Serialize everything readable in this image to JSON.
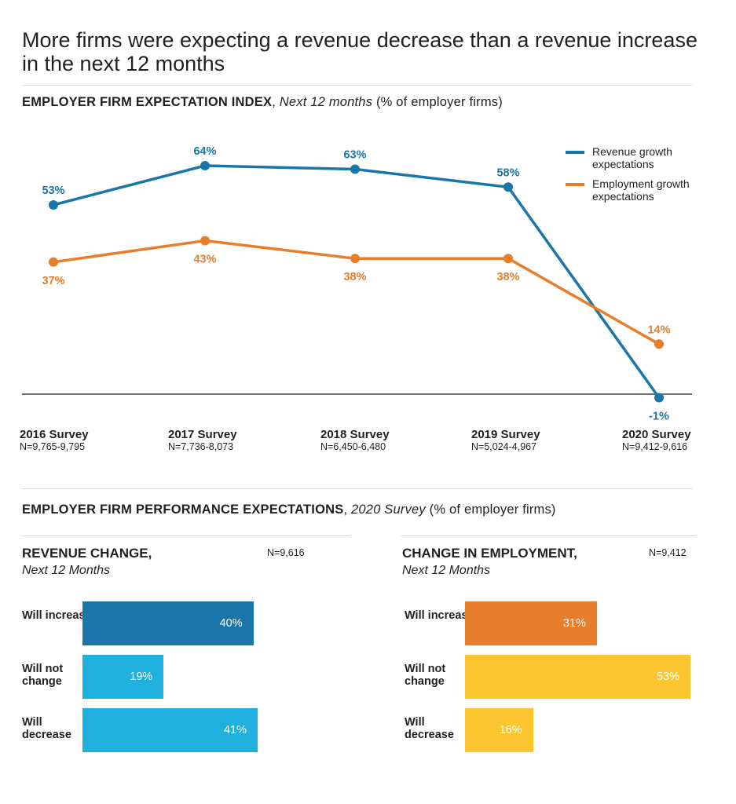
{
  "title": "More firms were expecting a revenue decrease than a revenue increase in the next 12 months",
  "line_section": {
    "heading_bold": "EMPLOYER FIRM EXPECTATION INDEX",
    "heading_italic": "Next 12 months",
    "heading_plain": "(% of employer firms)"
  },
  "surveys": [
    {
      "name": "2016 Survey",
      "n": "N=9,765-9,795"
    },
    {
      "name": "2017 Survey",
      "n": "N=7,736-8,073"
    },
    {
      "name": "2018 Survey",
      "n": "N=6,450-6,480"
    },
    {
      "name": "2019 Survey",
      "n": "N=5,024-4,967"
    },
    {
      "name": "2020 Survey",
      "n": "N=9,412-9,616"
    }
  ],
  "legend": [
    {
      "label": "Revenue growth expectations",
      "color": "#1a75a8"
    },
    {
      "label": "Employment growth expectations",
      "color": "#e87d2c"
    }
  ],
  "bar_section": {
    "heading_bold": "EMPLOYER FIRM PERFORMANCE EXPECTATIONS",
    "heading_italic": "2020 Survey",
    "heading_plain": "(% of employer firms)"
  },
  "chart_data": [
    {
      "type": "line",
      "title": "EMPLOYER FIRM EXPECTATION INDEX, Next 12 months (% of employer firms)",
      "categories": [
        "2016 Survey",
        "2017 Survey",
        "2018 Survey",
        "2019 Survey",
        "2020 Survey"
      ],
      "series": [
        {
          "name": "Revenue growth expectations",
          "values": [
            53,
            64,
            63,
            58,
            -1
          ],
          "labels": [
            "53%",
            "64%",
            "63%",
            "58%",
            "-1%"
          ],
          "color": "#1a75a8"
        },
        {
          "name": "Employment growth expectations",
          "values": [
            37,
            43,
            38,
            38,
            14
          ],
          "labels": [
            "37%",
            "43%",
            "38%",
            "38%",
            "14%"
          ],
          "color": "#e87d2c"
        }
      ],
      "ylim": [
        -5,
        70
      ],
      "zero_line": true,
      "grid": false,
      "legend_position": "top-right"
    },
    {
      "type": "bar",
      "orientation": "horizontal",
      "title": "REVENUE CHANGE,",
      "subtitle": "Next 12 Months",
      "n_note": "N=9,616",
      "categories": [
        "Will increase",
        "Will not change",
        "Will decrease"
      ],
      "values": [
        40,
        19,
        41
      ],
      "labels": [
        "40%",
        "19%",
        "41%"
      ],
      "colors": [
        "#1a75a8",
        "#1fb0de",
        "#1fb0de"
      ]
    },
    {
      "type": "bar",
      "orientation": "horizontal",
      "title": "CHANGE IN EMPLOYMENT,",
      "subtitle": "Next 12 Months",
      "n_note": "N=9,412",
      "categories": [
        "Will increase",
        "Will not change",
        "Will decrease"
      ],
      "values": [
        31,
        53,
        16
      ],
      "labels": [
        "31%",
        "53%",
        "16%"
      ],
      "colors": [
        "#e87d2c",
        "#fcc52f",
        "#fcc52f"
      ]
    }
  ]
}
